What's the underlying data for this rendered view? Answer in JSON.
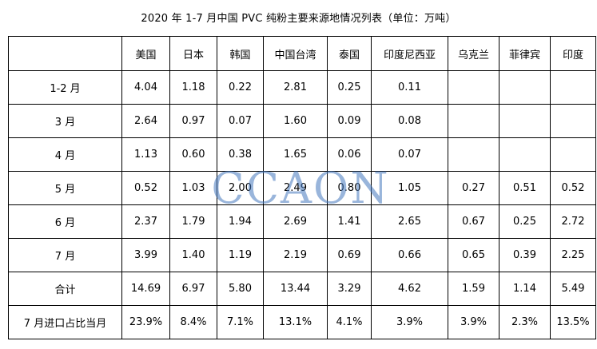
{
  "title": "2020 年 1-7 月中国 PVC 纯粉主要来源地情况列表（单位：万吨）",
  "watermark": "CCAON",
  "chart_data": {
    "type": "table",
    "title": "2020 年 1-7 月中国 PVC 纯粉主要来源地情况列表（单位：万吨）",
    "columns": [
      "",
      "美国",
      "日本",
      "韩国",
      "中国台湾",
      "泰国",
      "印度尼西亚",
      "乌克兰",
      "菲律宾",
      "印度"
    ],
    "rows": [
      [
        "1-2 月",
        "4.04",
        "1.18",
        "0.22",
        "2.81",
        "0.25",
        "0.11",
        "",
        "",
        ""
      ],
      [
        "3 月",
        "2.64",
        "0.97",
        "0.07",
        "1.60",
        "0.09",
        "0.08",
        "",
        "",
        ""
      ],
      [
        "4 月",
        "1.13",
        "0.60",
        "0.38",
        "1.65",
        "0.06",
        "0.07",
        "",
        "",
        ""
      ],
      [
        "5 月",
        "0.52",
        "1.03",
        "2.00",
        "2.49",
        "0.80",
        "1.05",
        "0.27",
        "0.51",
        "0.52"
      ],
      [
        "6 月",
        "2.37",
        "1.79",
        "1.94",
        "2.69",
        "1.41",
        "2.65",
        "0.67",
        "0.25",
        "2.72"
      ],
      [
        "7 月",
        "3.99",
        "1.40",
        "1.19",
        "2.19",
        "0.69",
        "0.66",
        "0.65",
        "0.39",
        "2.25"
      ],
      [
        "合计",
        "14.69",
        "6.97",
        "5.80",
        "13.44",
        "3.29",
        "4.62",
        "1.59",
        "1.14",
        "5.49"
      ],
      [
        "7 月进口占比当月",
        "23.9%",
        "8.4%",
        "7.1%",
        "13.1%",
        "4.1%",
        "3.9%",
        "3.9%",
        "2.3%",
        "13.5%"
      ]
    ]
  }
}
